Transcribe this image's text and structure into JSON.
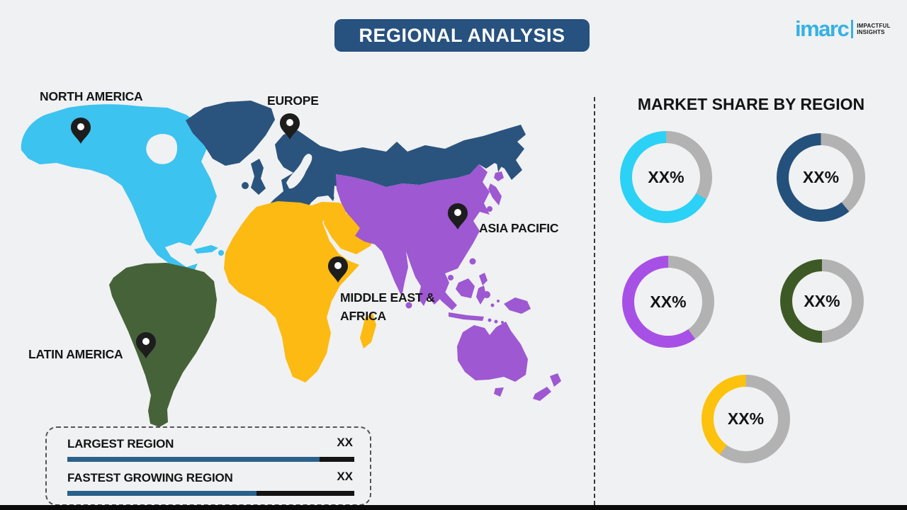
{
  "page": {
    "background": "#f0f1f2",
    "bottom_bar_color": "#0a0a0a"
  },
  "header": {
    "title": "REGIONAL ANALYSIS",
    "banner_color": "#27517e",
    "text_color": "#ffffff"
  },
  "logo": {
    "brand": "imarc",
    "brand_color": "#35b1e4",
    "tagline_line1": "IMPACTFUL",
    "tagline_line2": "INSIGHTS",
    "tagline_color": "#1a1a1a"
  },
  "map": {
    "pin_color": "#1d1d1d",
    "regions": [
      {
        "id": "north-america",
        "label": "NORTH AMERICA",
        "color": "#3cc3f0"
      },
      {
        "id": "europe",
        "label": "EUROPE",
        "color": "#2a547e"
      },
      {
        "id": "asia-pacific",
        "label": "ASIA PACIFIC",
        "color": "#9d58d2"
      },
      {
        "id": "middle-east-africa",
        "label": "MIDDLE EAST & AFRICA",
        "label_line1": "MIDDLE EAST &",
        "label_line2": "AFRICA",
        "color": "#fcba12"
      },
      {
        "id": "latin-america",
        "label": "LATIN AMERICA",
        "color": "#466239"
      }
    ]
  },
  "market_share": {
    "title": "MARKET SHARE BY REGION",
    "donuts": [
      {
        "region": "North America",
        "label": "XX%",
        "color": "#2bd2f5",
        "gray_color": "#b2b2b2",
        "filled_pct": 67
      },
      {
        "region": "Europe",
        "label": "XX%",
        "color": "#24507c",
        "gray_color": "#b2b2b2",
        "filled_pct": 61
      },
      {
        "region": "Asia Pacific",
        "label": "XX%",
        "color": "#a750e5",
        "gray_color": "#b2b2b2",
        "filled_pct": 60
      },
      {
        "region": "Latin America",
        "label": "XX%",
        "color": "#3d5a26",
        "gray_color": "#b2b2b2",
        "filled_pct": 50
      },
      {
        "region": "Middle East & Africa",
        "label": "XX%",
        "color": "#fcc20d",
        "gray_color": "#b2b2b2",
        "filled_pct": 40
      }
    ]
  },
  "legend": {
    "bar_fill_color": "#2a618a",
    "bar_track_color": "#141414",
    "rows": [
      {
        "label": "LARGEST REGION",
        "value": "XX",
        "bar_blue_pct": 88
      },
      {
        "label": "FASTEST GROWING REGION",
        "value": "XX",
        "bar_blue_pct": 66
      }
    ]
  },
  "chart_data": {
    "type": "pie",
    "title": "MARKET SHARE BY REGION",
    "legend_position": "none",
    "series": [
      {
        "name": "North America",
        "label": "XX%",
        "filled_pct_estimate": 67
      },
      {
        "name": "Europe",
        "label": "XX%",
        "filled_pct_estimate": 61
      },
      {
        "name": "Asia Pacific",
        "label": "XX%",
        "filled_pct_estimate": 60
      },
      {
        "name": "Latin America",
        "label": "XX%",
        "filled_pct_estimate": 50
      },
      {
        "name": "Middle East & Africa",
        "label": "XX%",
        "filled_pct_estimate": 40
      }
    ],
    "note": "Donut values are placeholder XX% in the source image"
  }
}
